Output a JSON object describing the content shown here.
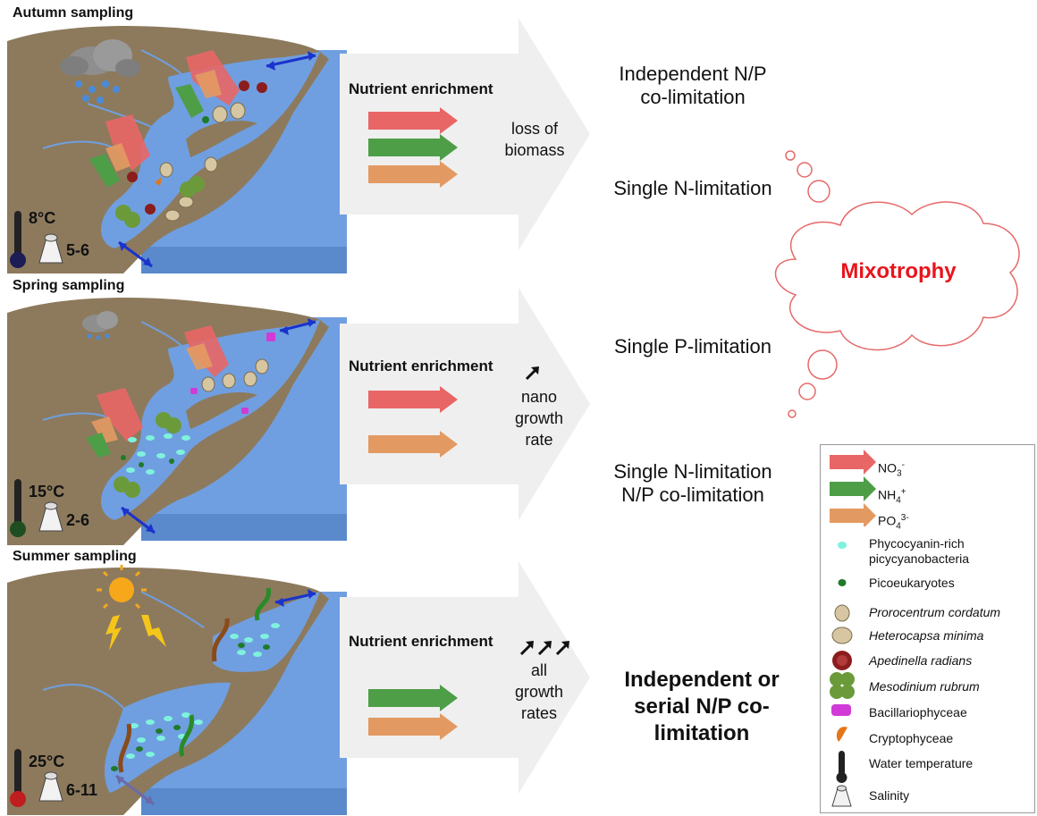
{
  "panels": [
    {
      "title": "Autumn sampling",
      "nutrient_title": "Nutrient enrichment",
      "temperature": "8°C",
      "salinity": "5-6",
      "effect_lines": [
        "loss of",
        "biomass"
      ],
      "arrows": [
        "NO3",
        "NH4",
        "PO4"
      ]
    },
    {
      "title": "Spring sampling",
      "nutrient_title": "Nutrient enrichment",
      "temperature": "15°C",
      "salinity": "2-6",
      "effect_icon": "up-arrow-single",
      "effect_lines": [
        "nano",
        "growth",
        "rate"
      ],
      "arrows": [
        "NO3",
        "PO4"
      ]
    },
    {
      "title": "Summer sampling",
      "nutrient_title": "Nutrient enrichment",
      "temperature": "25°C",
      "salinity": "6-11",
      "effect_icon": "up-arrow-triple",
      "effect_lines": [
        "all",
        "growth",
        "rates"
      ],
      "arrows": [
        "NH4",
        "PO4"
      ]
    }
  ],
  "outcomes": {
    "autumn_1": [
      "Independent N/P",
      "co-limitation"
    ],
    "autumn_2": "Single N-limitation",
    "spring_1": "Single P-limitation",
    "spring_2": [
      "Single N-limitation",
      "N/P co-limitation"
    ],
    "summer": [
      "Independent or",
      "serial N/P co-",
      "limitation"
    ]
  },
  "cloud": {
    "label": "Mixotrophy"
  },
  "legend": {
    "nutrients": [
      {
        "base": "NO",
        "sub": "3",
        "sup": "-",
        "color": "#e86666"
      },
      {
        "base": "NH",
        "sub": "4",
        "sup": "+",
        "color": "#4e9e48"
      },
      {
        "base": "PO",
        "sub": "4",
        "sup": "3-",
        "color": "#e39a62"
      }
    ],
    "items": [
      {
        "label": "Phycocyanin-rich",
        "label2": "picycyanobacteria",
        "italic": false,
        "icon": "cyan-oval-icon"
      },
      {
        "label": "Picoeukaryotes",
        "italic": false,
        "icon": "green-dot-icon"
      },
      {
        "label": "Prorocentrum cordatum",
        "italic": true,
        "icon": "prorocentrum-icon"
      },
      {
        "label": "Heterocapsa minima",
        "italic": true,
        "icon": "heterocapsa-icon"
      },
      {
        "label": "Apedinella radians",
        "italic": true,
        "icon": "apedinella-icon"
      },
      {
        "label": "Mesodinium rubrum",
        "italic": true,
        "icon": "mesodinium-icon"
      },
      {
        "label": "Bacillariophyceae",
        "italic": false,
        "icon": "diatom-icon"
      },
      {
        "label": "Cryptophyceae",
        "italic": false,
        "icon": "cryptophyte-icon"
      },
      {
        "label": "Water temperature",
        "italic": false,
        "icon": "thermometer-icon"
      },
      {
        "label": "Salinity",
        "italic": false,
        "icon": "salt-shaker-icon"
      }
    ]
  },
  "colors": {
    "land": "#8d7a5d",
    "water": "#6f9fe0",
    "water_light": "#8bb5ec",
    "panel_arrow": "#efefef",
    "no3": "#e86666",
    "nh4": "#4e9e48",
    "po4": "#e39a62",
    "mixotrophy": "#e8141c"
  }
}
